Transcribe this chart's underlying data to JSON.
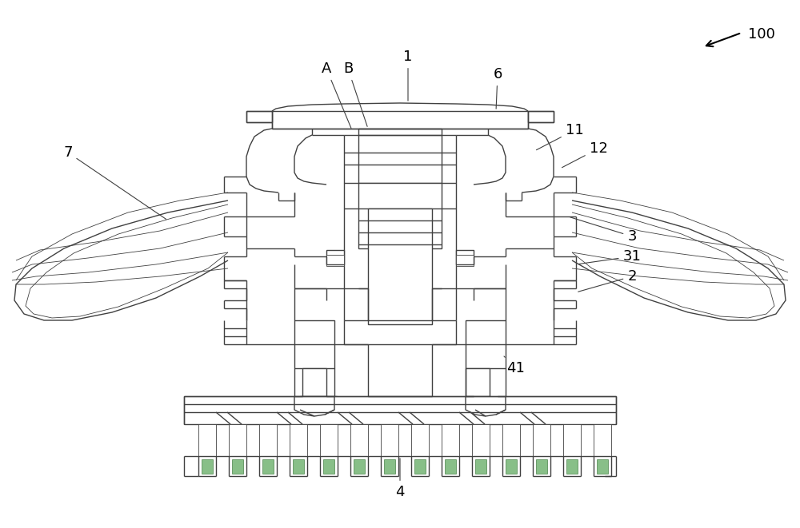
{
  "fig_width": 10.0,
  "fig_height": 6.61,
  "dpi": 100,
  "bg_color": "#ffffff",
  "lc": "#404040",
  "lw": 1.0,
  "tlw": 0.6,
  "fs": 11
}
